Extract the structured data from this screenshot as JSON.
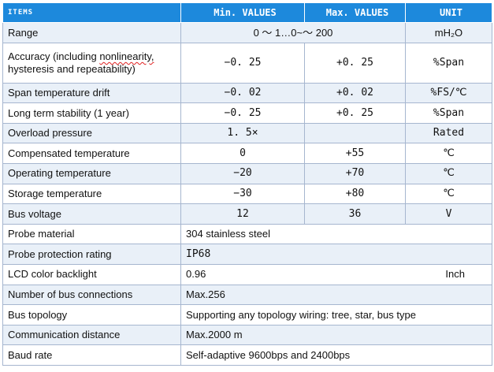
{
  "header": {
    "items": "ITEMS",
    "min_values": "Min. VALUES",
    "max_values": "Max. VALUES",
    "unit": "UNIT"
  },
  "rows": [
    {
      "item": "Range",
      "range": "0 ～ 1…0~～ 200",
      "unit": "mH₂O"
    },
    {
      "item_a": "Accuracy (including ",
      "item_b": "nonlinearity,",
      "item_c": "hysteresis and repeatability)",
      "min": "−0. 25",
      "max": "+0. 25",
      "unit": "%Span"
    },
    {
      "item": "Span temperature drift",
      "min": "−0. 02",
      "max": "+0. 02",
      "unit": "%FS/℃"
    },
    {
      "item": "Long term stability (1 year)",
      "min": "−0. 25",
      "max": "+0. 25",
      "unit": "%Span"
    },
    {
      "item": "Overload pressure",
      "min": "1. 5×",
      "max": "",
      "unit": "Rated"
    },
    {
      "item": "Compensated temperature",
      "min": "0",
      "max": "+55",
      "unit": "℃"
    },
    {
      "item": "Operating temperature",
      "min": "−20",
      "max": "+70",
      "unit": "℃"
    },
    {
      "item": "Storage temperature",
      "min": "−30",
      "max": "+80",
      "unit": "℃"
    },
    {
      "item": "Bus voltage",
      "min": "12",
      "max": "36",
      "unit": "V"
    },
    {
      "item": "Probe material",
      "value": "304 stainless steel"
    },
    {
      "item": "Probe protection rating",
      "value": "IP68"
    },
    {
      "item": "LCD color backlight",
      "value": "0.96",
      "unit": "Inch"
    },
    {
      "item": "Number of bus connections",
      "value": "Max.256"
    },
    {
      "item": "Bus topology",
      "value": "Supporting any topology wiring: tree, star, bus type"
    },
    {
      "item": "Communication distance",
      "value": "Max.2000 m"
    },
    {
      "item": "Baud rate",
      "value": "Self-adaptive 9600bps and 2400bps"
    }
  ]
}
